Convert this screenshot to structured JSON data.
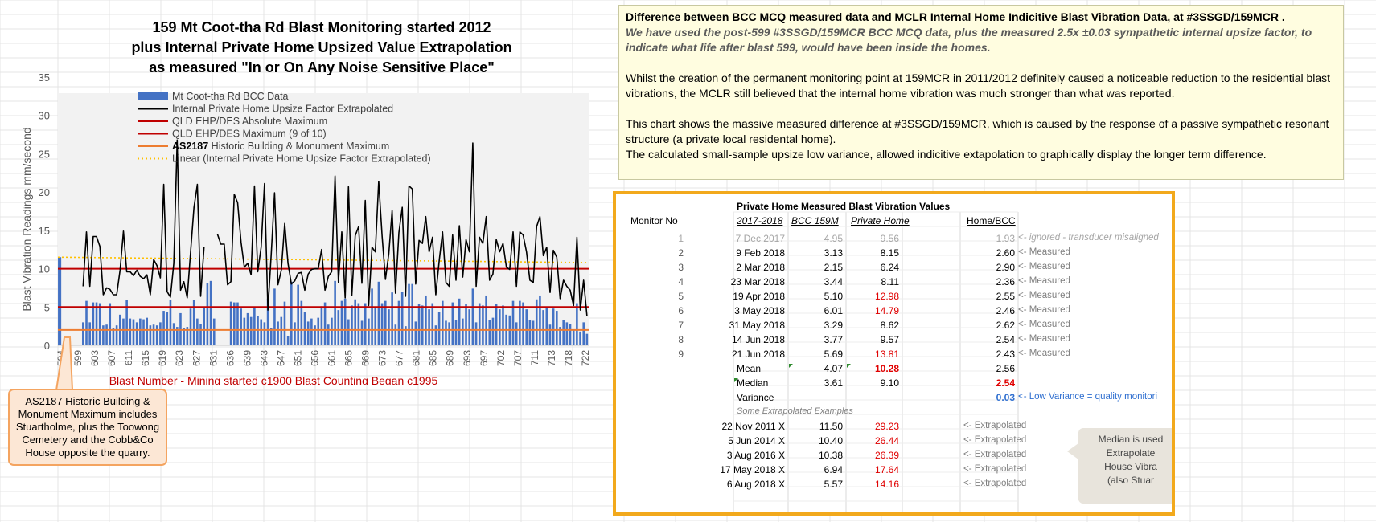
{
  "chart_data": {
    "type": "bar",
    "title_lines": [
      "159 Mt Coot-tha Rd Blast Monitoring started 2012",
      "plus Internal Private Home Upsized Value Extrapolation",
      "as measured \"In or On Any Noise Sensitive Place\""
    ],
    "ylabel": "Blast Vibration Readings mm/second",
    "xlabel": "Blast Number - Mining started c1900  Blast Counting Began c1995",
    "ylim": [
      0,
      35
    ],
    "yticks": [
      0,
      5,
      10,
      15,
      20,
      25,
      30,
      35
    ],
    "x_tick_labels": [
      "594",
      "599",
      "603",
      "607",
      "611",
      "615",
      "619",
      "623",
      "627",
      "631",
      "636",
      "639",
      "643",
      "647",
      "651",
      "656",
      "661",
      "665",
      "669",
      "673",
      "677",
      "681",
      "685",
      "689",
      "693",
      "697",
      "702",
      "707",
      "711",
      "713",
      "718",
      "722"
    ],
    "legend": [
      {
        "label": "Mt Coot-tha Rd BCC Data",
        "style": "bar",
        "color": "#4472c4"
      },
      {
        "label": "Internal Private Home Upsize Factor Extrapolated",
        "style": "line",
        "color": "#000000"
      },
      {
        "label": "QLD EHP/DES Absolute Maximum",
        "style": "line",
        "color": "#c00000"
      },
      {
        "label": "QLD EHP/DES Maximum (9 of 10)",
        "style": "line",
        "color": "#c00000"
      },
      {
        "label": "AS2187    Historic Building & Monument Maximum",
        "style": "line",
        "color": "#ed7d31",
        "bold_prefix": "AS2187"
      },
      {
        "label": "Linear (Internal Private Home Upsize Factor Extrapolated)",
        "style": "dotted",
        "color": "#ffc000"
      }
    ],
    "reference_lines": [
      {
        "name": "QLD EHP/DES Absolute Maximum",
        "value": 10,
        "color": "#c00000"
      },
      {
        "name": "QLD EHP/DES Maximum (9 of 10)",
        "value": 5,
        "color": "#c00000"
      },
      {
        "name": "AS2187 Historic Building & Monument Maximum",
        "value": 2,
        "color": "#ed7d31"
      }
    ],
    "trend": {
      "start": 11.5,
      "end": 10.8,
      "color": "#ffc000"
    },
    "series": [
      {
        "name": "Mt Coot-tha Rd BCC Data",
        "values": [
          11.5,
          null,
          null,
          null,
          null,
          null,
          null,
          3.0,
          5.8,
          3.0,
          5.6,
          5.6,
          5.5,
          2.6,
          2.7,
          5.5,
          2.3,
          2.6,
          4.0,
          3.5,
          5.9,
          3.5,
          3.4,
          3.0,
          3.5,
          3.4,
          3.6,
          2.6,
          2.7,
          2.6,
          3.0,
          4.5,
          4.3,
          5.9,
          2.9,
          2.4,
          4.2,
          2.3,
          2.4,
          4.8,
          5.9,
          3.5,
          2.8,
          5.0,
          8.1,
          8.4,
          3.5,
          null,
          null,
          null,
          null,
          5.7,
          5.6,
          5.6,
          4.8,
          3.6,
          4.2,
          3.7,
          5.0,
          3.8,
          3.4,
          3.0,
          6.1,
          2.3,
          7.4,
          3.1,
          3.7,
          5.7,
          1.2,
          8.3,
          3.0,
          7.9,
          5.8,
          4.4,
          3.1,
          3.5,
          2.6,
          3.6,
          5.1,
          5.6,
          2.7,
          3.6,
          8.4,
          4.6,
          5.8,
          6.1,
          3.4,
          5.2,
          6.0,
          5.5,
          3.2,
          5.5,
          3.5,
          7.4,
          4.9,
          8.3,
          5.5,
          5.8,
          4.7,
          6.9,
          2.7,
          5.8,
          7.0,
          2.5,
          8.0,
          8.0,
          3.1,
          5.4,
          5.2,
          6.5,
          4.7,
          5.5,
          2.6,
          4.3,
          5.8,
          3.2,
          3.0,
          5.6,
          3.3,
          6.1,
          3.5,
          5.4,
          4.7,
          7.4,
          3.0,
          5.5,
          5.2,
          6.5,
          3.3,
          3.6,
          5.4,
          4.7,
          5.2,
          4.0,
          3.9,
          5.8,
          3.0,
          5.8,
          5.6,
          4.7,
          3.3,
          3.2,
          6.0,
          6.5,
          4.6,
          5.0,
          2.7,
          4.8,
          4.5,
          2.4,
          3.3,
          3.0,
          2.8,
          2.0,
          5.5,
          1.8,
          3.0,
          1.5
        ]
      },
      {
        "name": "Internal Private Home Upsize Factor Extrapolated",
        "values": [
          null,
          null,
          null,
          null,
          null,
          null,
          null,
          7.7,
          14.8,
          7.7,
          14.2,
          14.2,
          12.9,
          6.6,
          7.5,
          7.3,
          6.6,
          6.6,
          9.8,
          14.9,
          9.6,
          9.6,
          9.1,
          9.8,
          9.0,
          8.7,
          9.2,
          6.6,
          11.2,
          10.4,
          8.8,
          21.0,
          7.0,
          6.3,
          10.7,
          26.8,
          7.2,
          8.3,
          6.2,
          12.2,
          18.0,
          21.0,
          6.4,
          12.8,
          null,
          null,
          null,
          14.5,
          13.2,
          13.2,
          7.9,
          8.3,
          19.7,
          18.6,
          13.5,
          10.2,
          10.7,
          9.2,
          20.8,
          9.6,
          12.8,
          21.1,
          4.6,
          12.0,
          19.9,
          7.9,
          9.8,
          15.9,
          10.7,
          8.0,
          8.4,
          9.4,
          9.5,
          7.2,
          9.3,
          9.9,
          10.0,
          10.0,
          12.5,
          7.2,
          9.0,
          9.6,
          22.1,
          8.2,
          14.8,
          6.2,
          20.7,
          6.5,
          14.3,
          15.5,
          8.1,
          18.9,
          5.2,
          12.8,
          12.2,
          21.4,
          14.3,
          8.6,
          12.0,
          17.6,
          6.8,
          14.7,
          18.0,
          6.4,
          20.8,
          20.4,
          8.0,
          13.7,
          13.3,
          16.8,
          12.2,
          14.1,
          6.6,
          11.0,
          14.8,
          8.2,
          7.7,
          14.4,
          8.5,
          15.6,
          8.9,
          13.8,
          12.2,
          26.4,
          7.7,
          14.1,
          13.3,
          16.8,
          8.5,
          9.3,
          13.8,
          12.2,
          13.3,
          10.2,
          9.9,
          14.8,
          7.7,
          14.8,
          14.4,
          12.2,
          8.5,
          8.2,
          15.5,
          16.8,
          11.7,
          12.8,
          6.9,
          12.4,
          11.5,
          6.1,
          8.5,
          7.7,
          7.2,
          5.2,
          14.1,
          4.6,
          8.5,
          3.8
        ]
      }
    ]
  },
  "callout": {
    "text": "AS2187 Historic Building & Monument Maximum includes Stuartholme, plus the Toowong Cemetery and the Cobb&Co House opposite the quarry."
  },
  "note": {
    "title": "Difference between BCC MCQ measured data and MCLR Internal Home Indicitive Blast Vibration Data, at #3SSGD/159MCR .",
    "italic": "We have used the post-599 #3SSGD/159MCR BCC MCQ  data, plus the measured 2.5x ±0.03 sympathetic internal upsize factor, to indicate what life after blast 599, would have been inside the homes.",
    "para1": "Whilst the creation of the permanent monitoring point at 159MCR in 2011/2012 definitely caused a noticeable reduction to the residential blast vibrations, the MCLR still believed that the internal home vibration was much stronger than what was reported.",
    "para2": "This chart shows the massive measured difference at #3SSGD/159MCR, which is caused by the response of a passive sympathetic resonant structure (a private local residental home).",
    "para3": "The calculated small-sample upsize low variance, allowed indicitive extapolation to graphically display the longer term difference."
  },
  "table": {
    "title": "Private Home Measured Blast Vibration Values",
    "header_monitor": "Monitor No",
    "header_period": "2017-2018",
    "header_bcc": "BCC 159M",
    "header_home": "Private Home",
    "header_ratio": "Home/BCC",
    "rows": [
      {
        "no": "1",
        "date": "7 Dec 2017",
        "bcc": "4.95",
        "home": "9.56",
        "ratio": "1.93",
        "note": "<- ignored - transducer misaligned",
        "style": "ignored"
      },
      {
        "no": "2",
        "date": "9 Feb 2018",
        "bcc": "3.13",
        "home": "8.15",
        "ratio": "2.60",
        "note": "<- Measured",
        "style": "normal"
      },
      {
        "no": "3",
        "date": "2 Mar 2018",
        "bcc": "2.15",
        "home": "6.24",
        "ratio": "2.90",
        "note": "<- Measured",
        "style": "normal"
      },
      {
        "no": "4",
        "date": "23 Mar 2018",
        "bcc": "3.44",
        "home": "8.11",
        "ratio": "2.36",
        "note": "<- Measured",
        "style": "normal"
      },
      {
        "no": "5",
        "date": "19 Apr 2018",
        "bcc": "5.10",
        "home": "12.98",
        "ratio": "2.55",
        "note": "<- Measured",
        "style": "red"
      },
      {
        "no": "6",
        "date": "3 May 2018",
        "bcc": "6.01",
        "home": "14.79",
        "ratio": "2.46",
        "note": "<- Measured",
        "style": "red"
      },
      {
        "no": "7",
        "date": "31 May 2018",
        "bcc": "3.29",
        "home": "8.62",
        "ratio": "2.62",
        "note": "<- Measured",
        "style": "normal"
      },
      {
        "no": "8",
        "date": "14 Jun 2018",
        "bcc": "3.77",
        "home": "9.57",
        "ratio": "2.54",
        "note": "<- Measured",
        "style": "normal"
      },
      {
        "no": "9",
        "date": "21 Jun 2018",
        "bcc": "5.69",
        "home": "13.81",
        "ratio": "2.43",
        "note": "<- Measured",
        "style": "red"
      }
    ],
    "mean": {
      "label": "Mean",
      "bcc": "4.07",
      "home": "10.28",
      "ratio": "2.56"
    },
    "median": {
      "label": "Median",
      "bcc": "3.61",
      "home": "9.10",
      "ratio": "2.54"
    },
    "variance": {
      "label": "Variance",
      "ratio": "0.03",
      "note": "<- Low Variance = quality monitori"
    },
    "extrap_header": "Some Extrapolated Examples",
    "extrap": [
      {
        "date": "22 Nov 2011 X",
        "bcc": "11.50",
        "home": "29.23",
        "note": "<- Extrapolated"
      },
      {
        "date": "5 Jun 2014 X",
        "bcc": "10.40",
        "home": "26.44",
        "note": "<- Extrapolated"
      },
      {
        "date": "3 Aug 2016 X",
        "bcc": "10.38",
        "home": "26.39",
        "note": "<- Extrapolated"
      },
      {
        "date": "17 May 2018 X",
        "bcc": "6.94",
        "home": "17.64",
        "note": "<- Extrapolated"
      },
      {
        "date": "6 Aug 2018 X",
        "bcc": "5.57",
        "home": "14.16",
        "note": "<- Extrapolated"
      }
    ],
    "side_note_lines": [
      "Median is used",
      "Extrapolate",
      "House Vibra",
      "(also Stuar"
    ]
  }
}
